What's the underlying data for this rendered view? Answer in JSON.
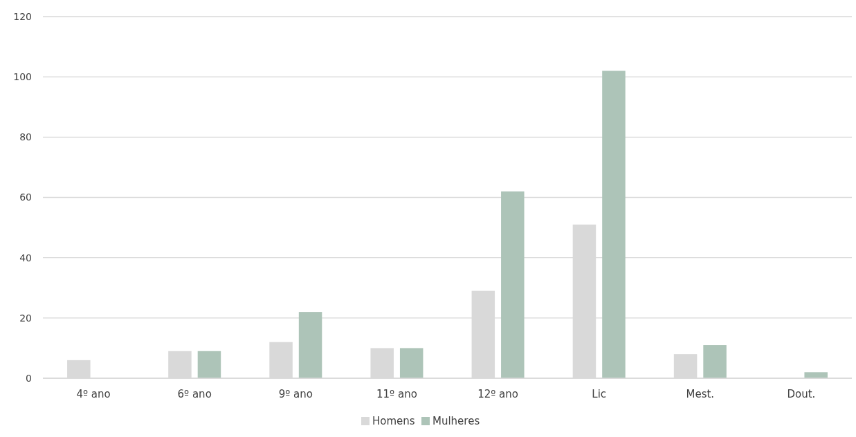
{
  "chart_data": {
    "type": "bar",
    "categories": [
      "4º ano",
      "6º ano",
      "9º ano",
      "11º ano",
      "12º ano",
      "Lic",
      "Mest.",
      "Dout."
    ],
    "series": [
      {
        "name": "Homens",
        "color": "#d9d9d9",
        "values": [
          6,
          9,
          12,
          10,
          29,
          51,
          8,
          0
        ]
      },
      {
        "name": "Mulheres",
        "color": "#adc4b8",
        "values": [
          0,
          9,
          22,
          10,
          62,
          102,
          11,
          2
        ]
      }
    ],
    "ylim": [
      0,
      120
    ],
    "yticks": [
      0,
      20,
      40,
      60,
      80,
      100,
      120
    ],
    "grid": "y",
    "legend": "bottom"
  }
}
